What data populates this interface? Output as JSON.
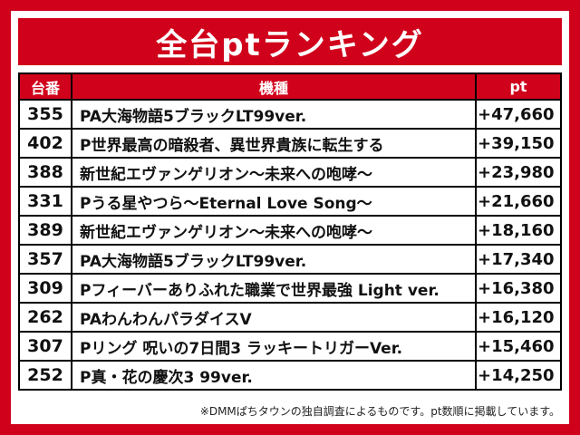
{
  "title": "全台ptランキング",
  "table": {
    "headers": {
      "number": "台番",
      "model": "機種",
      "pt": "pt"
    },
    "rows": [
      {
        "number": "355",
        "model": "PA大海物語5ブラックLT99ver.",
        "pt": "+47,660"
      },
      {
        "number": "402",
        "model": "P世界最高の暗殺者、異世界貴族に転生する",
        "pt": "+39,150"
      },
      {
        "number": "388",
        "model": "新世紀エヴァンゲリオン〜未来への咆哮〜",
        "pt": "+23,980"
      },
      {
        "number": "331",
        "model": "Pうる星やつら〜Eternal Love Song〜",
        "pt": "+21,660"
      },
      {
        "number": "389",
        "model": "新世紀エヴァンゲリオン〜未来への咆哮〜",
        "pt": "+18,160"
      },
      {
        "number": "357",
        "model": "PA大海物語5ブラックLT99ver.",
        "pt": "+17,340"
      },
      {
        "number": "309",
        "model": "Pフィーバーありふれた職業で世界最強 Light ver.",
        "pt": "+16,380"
      },
      {
        "number": "262",
        "model": "PAわんわんパラダイスV",
        "pt": "+16,120"
      },
      {
        "number": "307",
        "model": "Pリング 呪いの7日間3 ラッキートリガーVer.",
        "pt": "+15,460"
      },
      {
        "number": "252",
        "model": "P真・花の慶次3 99ver.",
        "pt": "+14,250"
      }
    ]
  },
  "footer": {
    "note": "※DMMぱちタウンの独自調査によるものです。pt数順に掲載しています。"
  },
  "colors": {
    "accent_red": "#d0021b",
    "text_black": "#111111",
    "background": "#ffffff"
  }
}
